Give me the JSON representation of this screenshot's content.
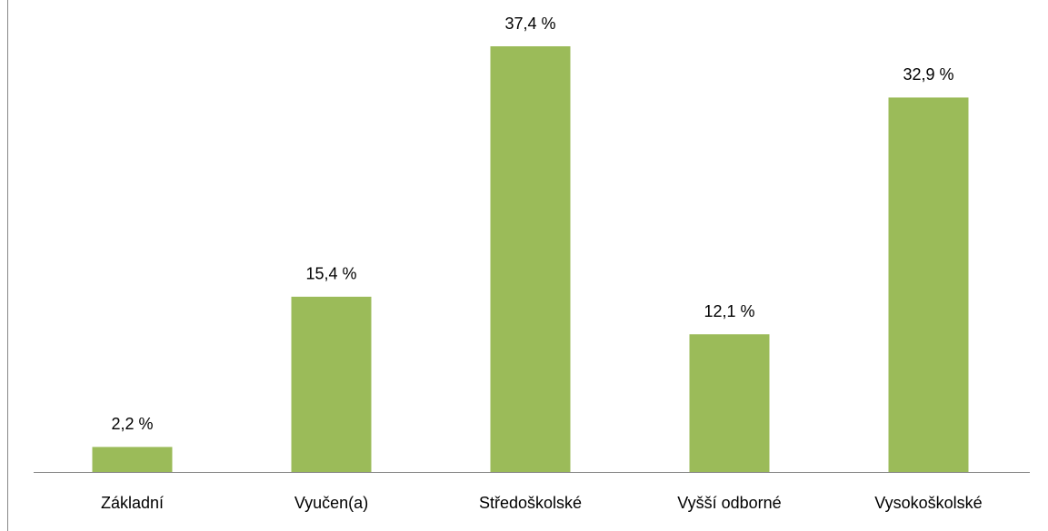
{
  "chart_data": {
    "type": "bar",
    "categories": [
      "Základní",
      "Vyučen(a)",
      "Středoškolské",
      "Vyšší odborné",
      "Vysokoškolské"
    ],
    "values": [
      2.2,
      15.4,
      37.4,
      12.1,
      32.9
    ],
    "value_labels": [
      "2,2 %",
      "15,4 %",
      "37,4 %",
      "12,1 %",
      "32,9 %"
    ],
    "color": "#9bbb59"
  }
}
